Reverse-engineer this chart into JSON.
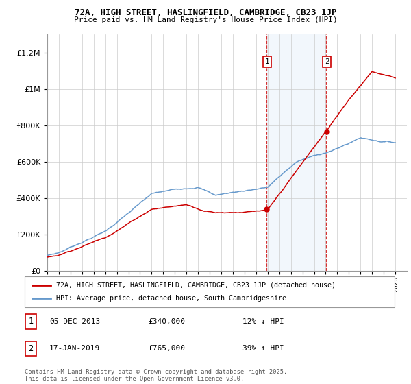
{
  "title1": "72A, HIGH STREET, HASLINGFIELD, CAMBRIDGE, CB23 1JP",
  "title2": "Price paid vs. HM Land Registry's House Price Index (HPI)",
  "legend_line1": "72A, HIGH STREET, HASLINGFIELD, CAMBRIDGE, CB23 1JP (detached house)",
  "legend_line2": "HPI: Average price, detached house, South Cambridgeshire",
  "transaction1_label": "1",
  "transaction1_date": "05-DEC-2013",
  "transaction1_price": "£340,000",
  "transaction1_hpi": "12% ↓ HPI",
  "transaction2_label": "2",
  "transaction2_date": "17-JAN-2019",
  "transaction2_price": "£765,000",
  "transaction2_hpi": "39% ↑ HPI",
  "footer": "Contains HM Land Registry data © Crown copyright and database right 2025.\nThis data is licensed under the Open Government Licence v3.0.",
  "red_color": "#cc0000",
  "blue_color": "#6699cc",
  "highlight_color": "#ddeeff",
  "dashed_color": "#cc0000",
  "ylim_min": 0,
  "ylim_max": 1300000,
  "transaction1_year": 2013.92,
  "transaction2_year": 2019.05,
  "xmin": 1995,
  "xmax": 2026
}
